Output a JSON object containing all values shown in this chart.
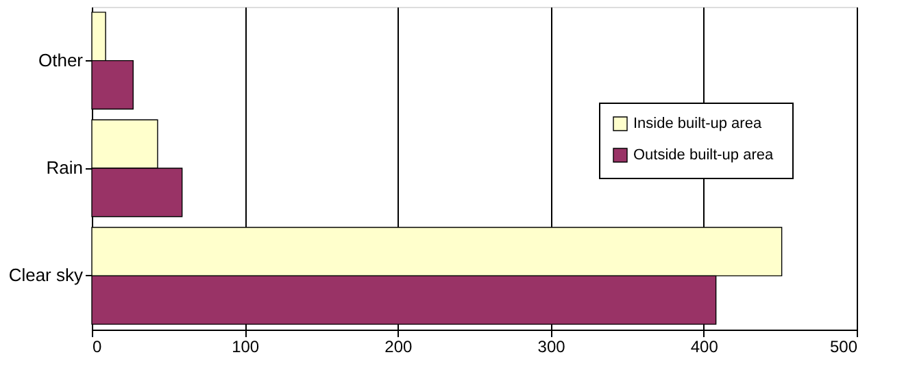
{
  "chart_data": {
    "type": "bar",
    "orientation": "horizontal",
    "categories": [
      "Other",
      "Rain",
      "Clear sky"
    ],
    "series": [
      {
        "name": "Inside  built-up area",
        "color": "#ffffcc",
        "values": [
          9,
          43,
          451
        ]
      },
      {
        "name": "Outside  built-up area",
        "color": "#993366",
        "values": [
          27,
          59,
          408
        ]
      }
    ],
    "xlim": [
      0,
      500
    ],
    "xticks": [
      0,
      100,
      200,
      300,
      400,
      500
    ],
    "grid": "x",
    "legend": "right"
  }
}
